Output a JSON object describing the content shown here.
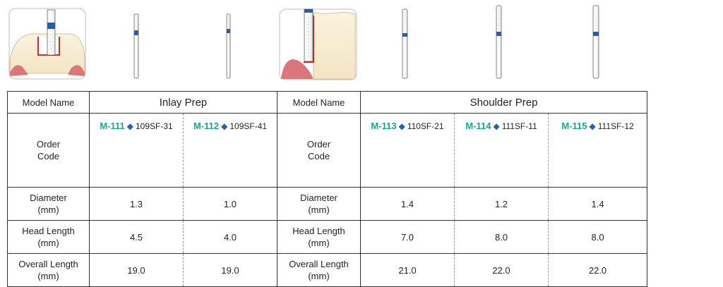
{
  "illustrations": [
    {
      "name": "inlay-prep-diagram"
    },
    {
      "name": "bur-m-111"
    },
    {
      "name": "bur-m-112"
    },
    {
      "name": "shoulder-prep-diagram"
    },
    {
      "name": "bur-m-113"
    },
    {
      "name": "bur-m-114"
    },
    {
      "name": "bur-m-115"
    }
  ],
  "colors": {
    "model_green": "#1aa68a",
    "diamond_blue": "#2b5faa",
    "band_blue": "#2a5da8",
    "gum_red": "#d9777d"
  },
  "table": {
    "model_name_label": "Model Name",
    "order_code_label_line1": "Order",
    "order_code_label_line2": "Code",
    "groups": [
      {
        "name": "Inlay Prep"
      },
      {
        "name": "Shoulder Prep"
      }
    ],
    "rows": {
      "diameter": {
        "line1": "Diameter",
        "line2": "(mm)"
      },
      "head_length": {
        "line1": "Head Length",
        "line2": "(mm)"
      },
      "overall_length": {
        "line1": "Overall Length",
        "line2": "(mm)"
      }
    },
    "models": [
      {
        "model": "M-111",
        "part": "109SF-31",
        "diameter": "1.3",
        "head_length": "4.5",
        "overall_length": "19.0"
      },
      {
        "model": "M-112",
        "part": "109SF-41",
        "diameter": "1.0",
        "head_length": "4.0",
        "overall_length": "19.0"
      },
      {
        "model": "M-113",
        "part": "110SF-21",
        "diameter": "1.4",
        "head_length": "7.0",
        "overall_length": "21.0"
      },
      {
        "model": "M-114",
        "part": "111SF-11",
        "diameter": "1.2",
        "head_length": "8.0",
        "overall_length": "22.0"
      },
      {
        "model": "M-115",
        "part": "111SF-12",
        "diameter": "1.4",
        "head_length": "8.0",
        "overall_length": "22.0"
      }
    ],
    "diamond_glyph": "◆"
  }
}
